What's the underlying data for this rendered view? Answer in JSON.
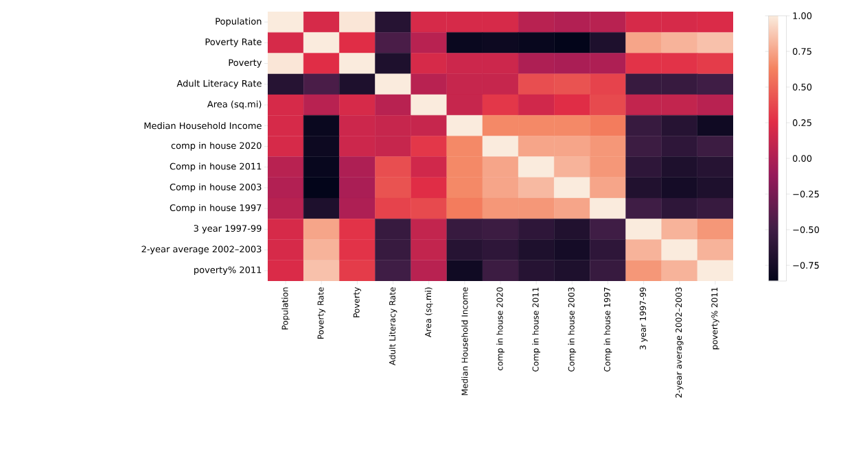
{
  "chart_data": {
    "type": "heatmap",
    "categories": [
      "Population",
      "Poverty Rate",
      "Poverty",
      "Adult Literacy Rate",
      "Area (sq.mi)",
      "Median Household Income",
      "comp in house 2020",
      "Comp in house 2011",
      "Comp in house 2003",
      "Comp in house 1997",
      "3 year 1997-99",
      "2-year average 2002–2003",
      "poverty% 2011"
    ],
    "y_categories": [
      "Population",
      "Poverty Rate",
      "Poverty",
      "Adult Literacy Rate",
      "Area (sq.mi)",
      "Median Household Income",
      "comp in house 2020",
      "Comp in house 2011",
      "Comp in house 2003",
      "Comp in house 1997",
      "3 year 1997-99",
      "2-year average 2002–2003",
      "poverty% 2011"
    ],
    "cells": [
      [
        1.0,
        0.2,
        0.98,
        -0.65,
        0.2,
        0.2,
        0.2,
        0.05,
        0.02,
        0.05,
        0.2,
        0.2,
        0.22
      ],
      [
        0.2,
        1.0,
        0.25,
        -0.45,
        0.05,
        -0.82,
        -0.8,
        -0.83,
        -0.86,
        -0.7,
        0.75,
        0.8,
        0.85
      ],
      [
        0.98,
        0.25,
        1.0,
        -0.7,
        0.2,
        0.15,
        0.15,
        0.0,
        -0.02,
        0.0,
        0.28,
        0.28,
        0.32
      ],
      [
        -0.65,
        -0.45,
        -0.7,
        1.0,
        0.05,
        0.12,
        0.12,
        0.4,
        0.42,
        0.35,
        -0.55,
        -0.55,
        -0.5
      ],
      [
        0.2,
        0.05,
        0.2,
        0.05,
        1.0,
        0.12,
        0.3,
        0.17,
        0.25,
        0.38,
        0.1,
        0.1,
        0.05
      ],
      [
        0.2,
        -0.82,
        0.15,
        0.12,
        0.12,
        1.0,
        0.65,
        0.65,
        0.65,
        0.6,
        -0.55,
        -0.65,
        -0.78
      ],
      [
        0.2,
        -0.8,
        0.15,
        0.12,
        0.3,
        0.65,
        1.0,
        0.75,
        0.75,
        0.7,
        -0.52,
        -0.6,
        -0.52
      ],
      [
        0.05,
        -0.83,
        0.0,
        0.4,
        0.17,
        0.65,
        0.75,
        1.0,
        0.8,
        0.7,
        -0.6,
        -0.7,
        -0.65
      ],
      [
        0.02,
        -0.86,
        -0.02,
        0.42,
        0.25,
        0.65,
        0.75,
        0.82,
        1.0,
        0.75,
        -0.68,
        -0.75,
        -0.7
      ],
      [
        0.05,
        -0.7,
        0.0,
        0.35,
        0.38,
        0.6,
        0.7,
        0.7,
        0.75,
        1.0,
        -0.5,
        -0.6,
        -0.55
      ],
      [
        0.2,
        0.75,
        0.28,
        -0.55,
        0.1,
        -0.55,
        -0.52,
        -0.6,
        -0.68,
        -0.5,
        1.0,
        0.8,
        0.7
      ],
      [
        0.2,
        0.8,
        0.28,
        -0.55,
        0.1,
        -0.65,
        -0.6,
        -0.7,
        -0.75,
        -0.6,
        0.8,
        1.0,
        0.8
      ],
      [
        0.22,
        0.85,
        0.32,
        -0.5,
        0.05,
        -0.78,
        -0.52,
        -0.65,
        -0.7,
        -0.55,
        0.7,
        0.8,
        1.0
      ]
    ],
    "clim": [
      -0.86,
      1.0
    ],
    "cticks": [
      {
        "value": 1.0,
        "label": "1.00"
      },
      {
        "value": 0.75,
        "label": "0.75"
      },
      {
        "value": 0.5,
        "label": "0.50"
      },
      {
        "value": 0.25,
        "label": "0.25"
      },
      {
        "value": 0.0,
        "label": "0.00"
      },
      {
        "value": -0.25,
        "label": "−0.25"
      },
      {
        "value": -0.5,
        "label": "−0.50"
      },
      {
        "value": -0.75,
        "label": "−0.75"
      }
    ]
  }
}
